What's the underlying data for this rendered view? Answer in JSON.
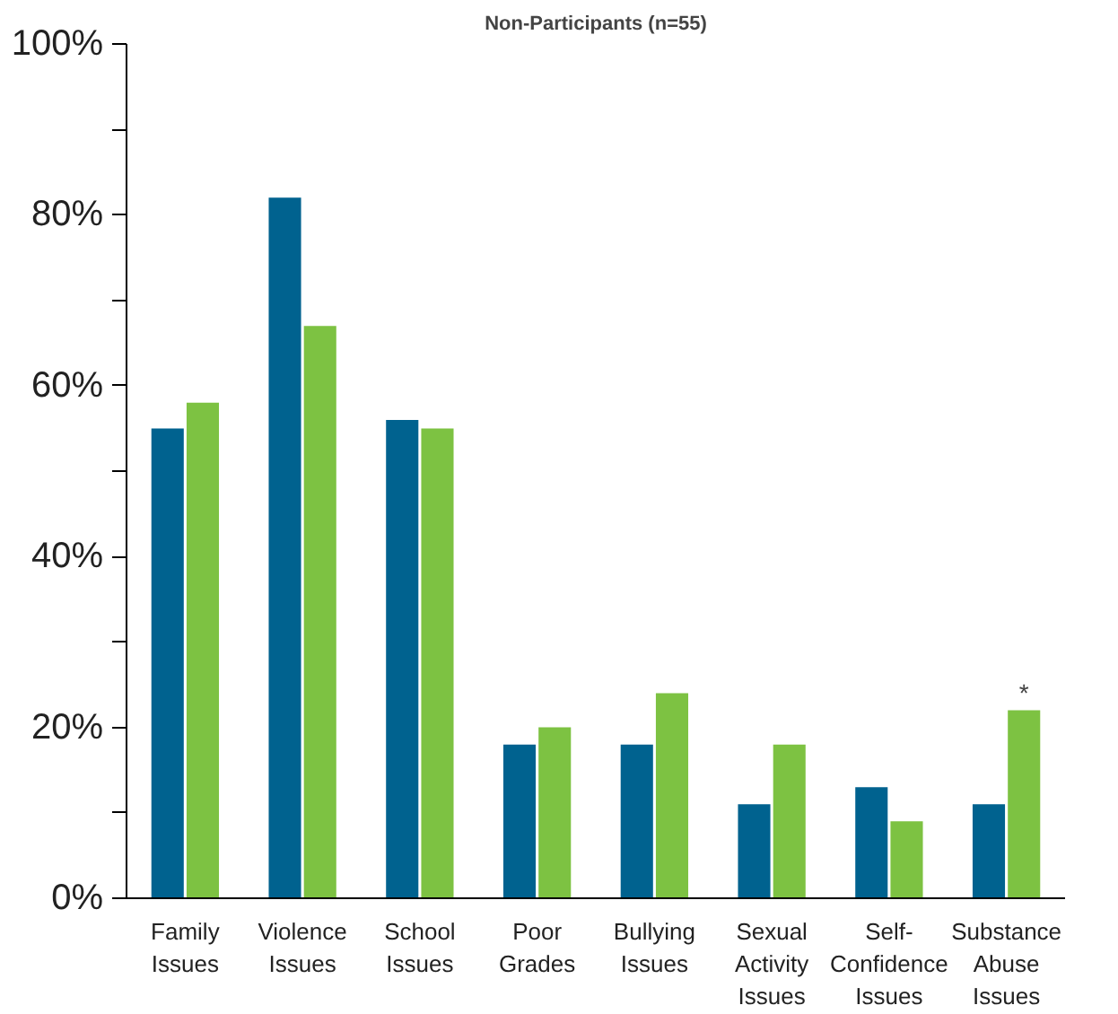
{
  "chart_data": {
    "type": "bar",
    "title": "Non-Participants (n=55)",
    "categories": [
      "Family\nIssues",
      "Violence\nIssues",
      "School\nIssues",
      "Poor\nGrades",
      "Bullying\nIssues",
      "Sexual\nActivity\nIssues",
      "Self-\nConfidence\nIssues",
      "Substance\nAbuse\nIssues"
    ],
    "series": [
      {
        "color": "#00628f",
        "values": [
          55,
          82,
          56,
          18,
          18,
          11,
          13,
          11
        ]
      },
      {
        "color": "#7dc242",
        "values": [
          58,
          67,
          55,
          20,
          24,
          18,
          9,
          22
        ]
      }
    ],
    "ylim": [
      0,
      100
    ],
    "yticks": [
      {
        "value": 0,
        "label": "0%"
      },
      {
        "value": 10,
        "label": null
      },
      {
        "value": 20,
        "label": "20%"
      },
      {
        "value": 30,
        "label": null
      },
      {
        "value": 40,
        "label": "40%"
      },
      {
        "value": 50,
        "label": null
      },
      {
        "value": 60,
        "label": "60%"
      },
      {
        "value": 70,
        "label": null
      },
      {
        "value": 80,
        "label": "80%"
      },
      {
        "value": 90,
        "label": null
      },
      {
        "value": 100,
        "label": "100%"
      }
    ],
    "annotations": [
      {
        "text": "*",
        "x": "Substance\nAbuse\nIssues",
        "y": 22
      }
    ],
    "grid": false
  }
}
